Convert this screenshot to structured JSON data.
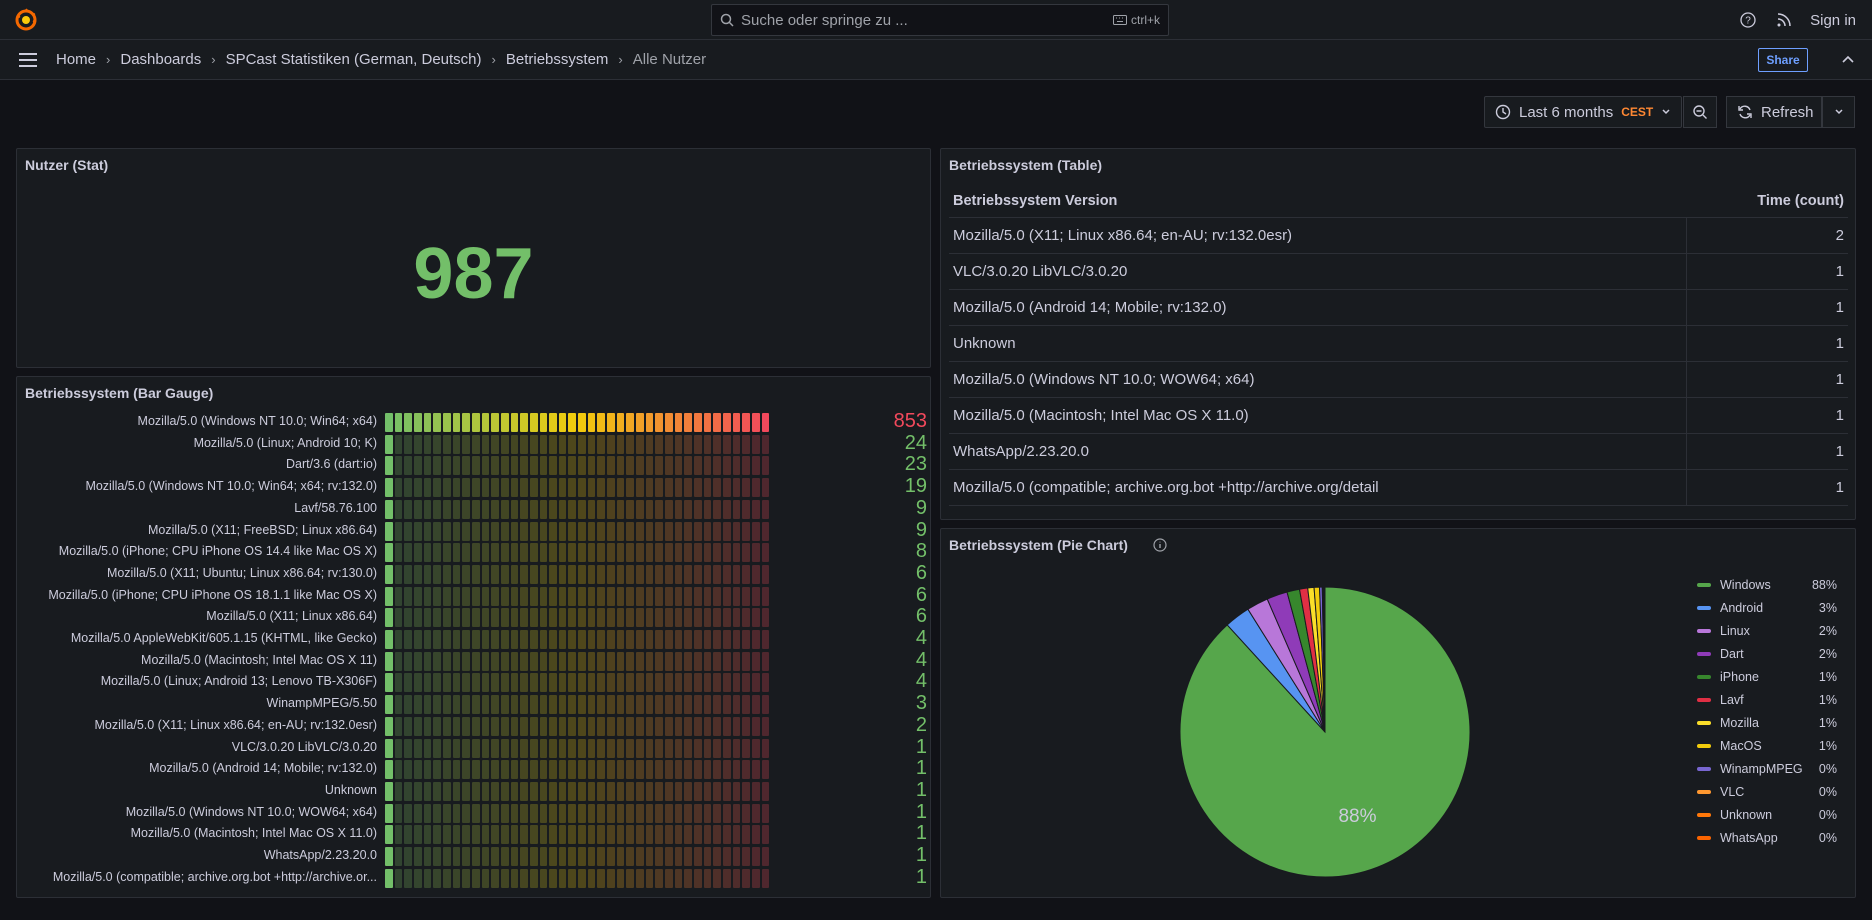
{
  "search": {
    "placeholder": "Suche oder springe zu ...",
    "shortcut": "ctrl+k"
  },
  "topbar": {
    "signin": "Sign in"
  },
  "breadcrumbs": [
    "Home",
    "Dashboards",
    "SPCast Statistiken (German, Deutsch)",
    "Betriebssystem",
    "Alle Nutzer"
  ],
  "nav": {
    "share": "Share"
  },
  "time": {
    "range": "Last 6 months",
    "tz": "CEST",
    "refresh": "Refresh"
  },
  "stat_panel": {
    "title": "Nutzer (Stat)",
    "value": "987"
  },
  "bar_gauge": {
    "title": "Betriebssystem (Bar Gauge)",
    "max": 853,
    "rows": [
      {
        "label": "Mozilla/5.0 (Windows NT 10.0; Win64; x64)",
        "value": 853
      },
      {
        "label": "Mozilla/5.0 (Linux; Android 10; K)",
        "value": 24
      },
      {
        "label": "Dart/3.6 (dart:io)",
        "value": 23
      },
      {
        "label": "Mozilla/5.0 (Windows NT 10.0; Win64; x64; rv:132.0)",
        "value": 19
      },
      {
        "label": "Lavf/58.76.100",
        "value": 9
      },
      {
        "label": "Mozilla/5.0 (X11; FreeBSD; Linux x86.64)",
        "value": 9
      },
      {
        "label": "Mozilla/5.0 (iPhone; CPU iPhone OS 14.4 like Mac OS X)",
        "value": 8
      },
      {
        "label": "Mozilla/5.0 (X11; Ubuntu; Linux x86.64; rv:130.0)",
        "value": 6
      },
      {
        "label": "Mozilla/5.0 (iPhone; CPU iPhone OS 18.1.1 like Mac OS X)",
        "value": 6
      },
      {
        "label": "Mozilla/5.0 (X11; Linux x86.64)",
        "value": 6
      },
      {
        "label": "Mozilla/5.0 AppleWebKit/605.1.15 (KHTML, like Gecko)",
        "value": 4
      },
      {
        "label": "Mozilla/5.0 (Macintosh; Intel Mac OS X 11)",
        "value": 4
      },
      {
        "label": "Mozilla/5.0 (Linux; Android 13; Lenovo TB-X306F)",
        "value": 4
      },
      {
        "label": "WinampMPEG/5.50",
        "value": 3
      },
      {
        "label": "Mozilla/5.0 (X11; Linux x86.64; en-AU; rv:132.0esr)",
        "value": 2
      },
      {
        "label": "VLC/3.0.20 LibVLC/3.0.20",
        "value": 1
      },
      {
        "label": "Mozilla/5.0 (Android 14; Mobile; rv:132.0)",
        "value": 1
      },
      {
        "label": "Unknown",
        "value": 1
      },
      {
        "label": "Mozilla/5.0 (Windows NT 10.0; WOW64; x64)",
        "value": 1
      },
      {
        "label": "Mozilla/5.0 (Macintosh; Intel Mac OS X 11.0)",
        "value": 1
      },
      {
        "label": "WhatsApp/2.23.20.0",
        "value": 1
      },
      {
        "label": "Mozilla/5.0 (compatible; archive.org.bot +http://archive.or...",
        "value": 1
      }
    ]
  },
  "table_panel": {
    "title": "Betriebssystem (Table)",
    "columns": [
      "Betriebssystem Version",
      "Time (count)"
    ],
    "rows": [
      [
        "Mozilla/5.0 (X11; Linux x86.64; en-AU; rv:132.0esr)",
        "2"
      ],
      [
        "VLC/3.0.20 LibVLC/3.0.20",
        "1"
      ],
      [
        "Mozilla/5.0 (Android 14; Mobile; rv:132.0)",
        "1"
      ],
      [
        "Unknown",
        "1"
      ],
      [
        "Mozilla/5.0 (Windows NT 10.0; WOW64; x64)",
        "1"
      ],
      [
        "Mozilla/5.0 (Macintosh; Intel Mac OS X 11.0)",
        "1"
      ],
      [
        "WhatsApp/2.23.20.0",
        "1"
      ],
      [
        "Mozilla/5.0 (compatible; archive.org.bot +http://archive.org/detail",
        "1"
      ]
    ]
  },
  "pie_panel": {
    "title": "Betriebssystem (Pie Chart)"
  },
  "chart_data": {
    "type": "pie",
    "slice_label": "88%",
    "slices": [
      {
        "name": "Windows",
        "pct_label": "88%",
        "value": 88.1,
        "color": "#56a64b"
      },
      {
        "name": "Android",
        "pct_label": "3%",
        "value": 2.85,
        "color": "#5794f2"
      },
      {
        "name": "Linux",
        "pct_label": "2%",
        "value": 2.4,
        "color": "#b877d9"
      },
      {
        "name": "Dart",
        "pct_label": "2%",
        "value": 2.3,
        "color": "#8f3bb8"
      },
      {
        "name": "iPhone",
        "pct_label": "1%",
        "value": 1.4,
        "color": "#37872d"
      },
      {
        "name": "Lavf",
        "pct_label": "1%",
        "value": 0.91,
        "color": "#e02f44"
      },
      {
        "name": "Mozilla",
        "pct_label": "1%",
        "value": 0.7,
        "color": "#fade2a"
      },
      {
        "name": "MacOS",
        "pct_label": "1%",
        "value": 0.6,
        "color": "#f2cc0c"
      },
      {
        "name": "WinampMPEG",
        "pct_label": "0%",
        "value": 0.3,
        "color": "#7866d1"
      },
      {
        "name": "VLC",
        "pct_label": "0%",
        "value": 0.1,
        "color": "#ff9830"
      },
      {
        "name": "Unknown",
        "pct_label": "0%",
        "value": 0.1,
        "color": "#ff780a"
      },
      {
        "name": "WhatsApp",
        "pct_label": "0%",
        "value": 0.1,
        "color": "#fa6400"
      }
    ]
  }
}
